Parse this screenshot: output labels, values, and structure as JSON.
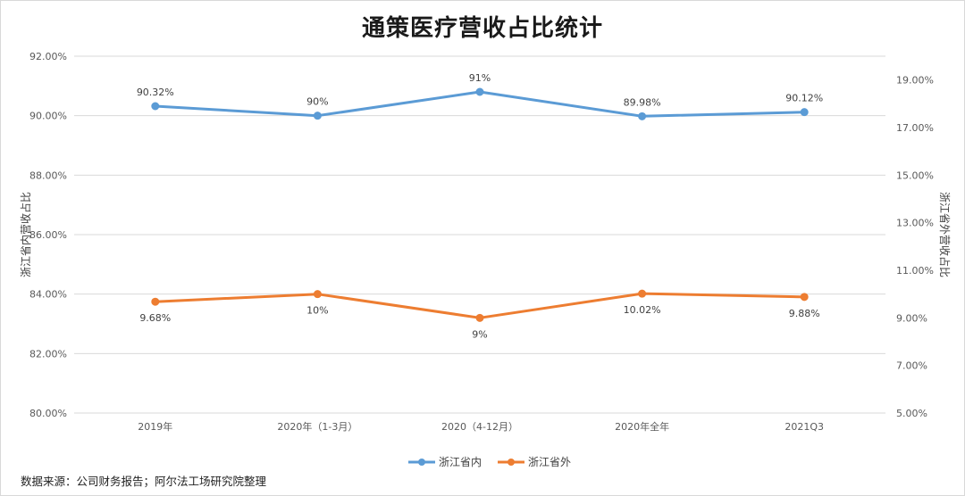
{
  "title": "通策医疗营收占比统计",
  "source": "数据来源：公司财务报告；阿尔法工场研究院整理",
  "chart_data": {
    "type": "line",
    "title": "通策医疗营收占比统计",
    "categories": [
      "2019年",
      "2020年（1-3月）",
      "2020（4-12月）",
      "2020年全年",
      "2021Q3"
    ],
    "y_left": {
      "label": "浙江省内营收占比",
      "range": [
        80,
        92
      ],
      "ticks": [
        "80.00%",
        "82.00%",
        "84.00%",
        "86.00%",
        "88.00%",
        "90.00%",
        "92.00%"
      ],
      "tick_values": [
        80,
        82,
        84,
        86,
        88,
        90,
        92
      ]
    },
    "y_right": {
      "label": "浙江省外营收占比",
      "range": [
        5,
        20
      ],
      "ticks": [
        "5.00%",
        "7.00%",
        "9.00%",
        "11.00%",
        "13.00%",
        "15.00%",
        "17.00%",
        "19.00%"
      ],
      "tick_values": [
        5,
        7,
        9,
        11,
        13,
        15,
        17,
        19
      ]
    },
    "series": [
      {
        "name": "浙江省内",
        "axis": "left",
        "color": "#5b9bd5",
        "values": [
          90.32,
          90,
          90.8,
          89.98,
          90.12
        ],
        "labels": [
          "90.32%",
          "90%",
          "91%",
          "89.98%",
          "90.12%"
        ]
      },
      {
        "name": "浙江省外",
        "axis": "right",
        "color": "#ed7d31",
        "values": [
          9.68,
          10,
          9,
          10.02,
          9.88
        ],
        "labels": [
          "9.68%",
          "10%",
          "9%",
          "10.02%",
          "9.88%"
        ]
      }
    ],
    "grid": true,
    "legend": "bottom"
  }
}
